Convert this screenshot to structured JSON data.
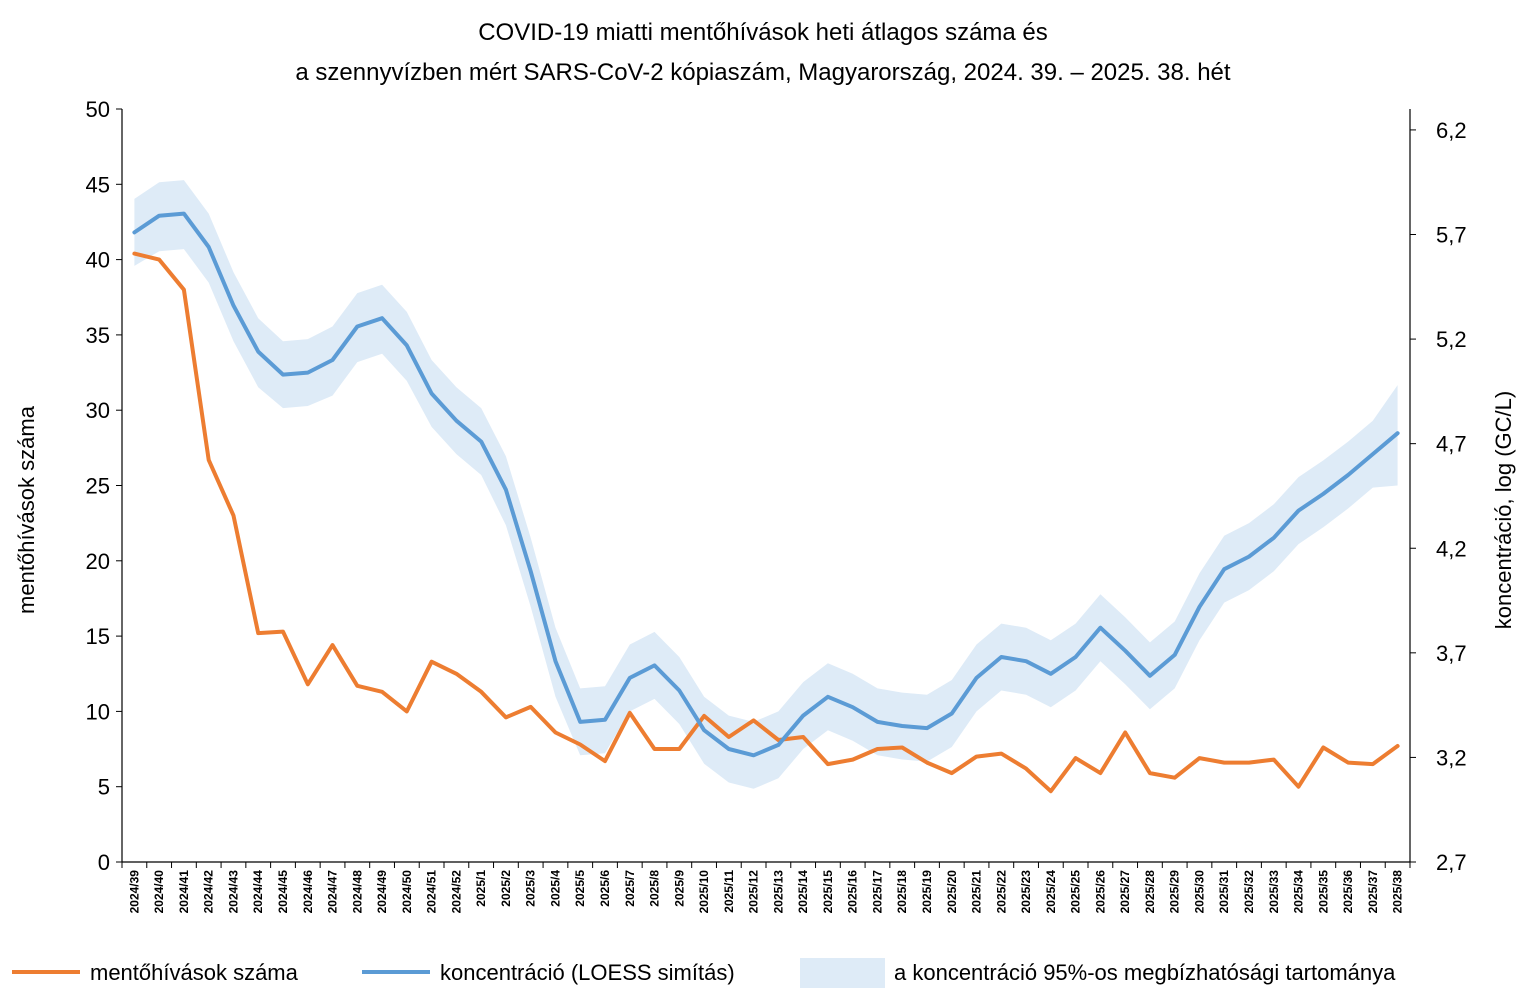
{
  "chart_data": {
    "type": "line",
    "title_lines": [
      "COVID-19 miatti mentőhívások heti átlagos száma és",
      "a szennyvízben mért SARS-CoV-2 kópiaszám, Magyarország, 2024. 39. – 2025. 38. hét"
    ],
    "ylabel": "mentőhívások száma",
    "ylabel_right": "koncentráció,  log (GC/L)",
    "ylim": [
      0,
      50
    ],
    "yticks": [
      0,
      5,
      10,
      15,
      20,
      25,
      30,
      35,
      40,
      45,
      50
    ],
    "ylim_right": [
      2.7,
      6.3
    ],
    "yticks_right": [
      2.7,
      3.2,
      3.7,
      4.2,
      4.7,
      5.2,
      5.7,
      6.2
    ],
    "ytick_labels_right": [
      "2,7",
      "3,2",
      "3,7",
      "4,2",
      "4,7",
      "5,2",
      "5,7",
      "6,2"
    ],
    "categories": [
      "2024/39",
      "2024/40",
      "2024/41",
      "2024/42",
      "2024/43",
      "2024/44",
      "2024/45",
      "2024/46",
      "2024/47",
      "2024/48",
      "2024/49",
      "2024/50",
      "2024/51",
      "2024/52",
      "2025/1",
      "2025/2",
      "2025/3",
      "2025/4",
      "2025/5",
      "2025/6",
      "2025/7",
      "2025/8",
      "2025/9",
      "2025/10",
      "2025/11",
      "2025/12",
      "2025/13",
      "2025/14",
      "2025/15",
      "2025/16",
      "2025/17",
      "2025/18",
      "2025/19",
      "2025/20",
      "2025/21",
      "2025/22",
      "2025/23",
      "2025/24",
      "2025/25",
      "2025/26",
      "2025/27",
      "2025/28",
      "2025/29",
      "2025/30",
      "2025/31",
      "2025/32",
      "2025/33",
      "2025/34",
      "2025/35",
      "2025/36",
      "2025/37",
      "2025/38"
    ],
    "series": [
      {
        "name": "mentőhívások száma",
        "axis": "left",
        "color": "#ED7D31",
        "values": [
          40.4,
          40.0,
          38.0,
          26.7,
          23.0,
          15.2,
          15.3,
          11.8,
          14.4,
          11.7,
          11.3,
          10.0,
          13.3,
          12.5,
          11.3,
          9.6,
          10.3,
          8.6,
          7.8,
          6.7,
          9.9,
          7.5,
          7.5,
          9.7,
          8.3,
          9.4,
          8.1,
          8.3,
          6.5,
          6.8,
          7.5,
          7.6,
          6.6,
          5.9,
          7.0,
          7.2,
          6.2,
          4.7,
          6.9,
          5.9,
          8.6,
          5.9,
          5.6,
          6.9,
          6.6,
          6.6,
          6.8,
          5.0,
          7.6,
          6.6,
          6.5,
          7.7
        ]
      },
      {
        "name": "koncentráció (LOESS simítás)",
        "axis": "right",
        "color": "#5B9BD5",
        "values": [
          5.71,
          5.79,
          5.8,
          5.64,
          5.36,
          5.14,
          5.03,
          5.04,
          5.1,
          5.26,
          5.3,
          5.17,
          4.94,
          4.81,
          4.71,
          4.48,
          4.09,
          3.66,
          3.37,
          3.38,
          3.58,
          3.64,
          3.52,
          3.33,
          3.24,
          3.21,
          3.26,
          3.4,
          3.49,
          3.44,
          3.37,
          3.35,
          3.34,
          3.41,
          3.58,
          3.68,
          3.66,
          3.6,
          3.68,
          3.82,
          3.71,
          3.59,
          3.69,
          3.92,
          4.1,
          4.16,
          4.25,
          4.38,
          4.46,
          4.55,
          4.65,
          4.75
        ]
      }
    ],
    "band": {
      "name": "a koncentráció 95%-os megbízhatósági tartománya",
      "color": "#DEEBF7",
      "lower": [
        5.55,
        5.62,
        5.63,
        5.47,
        5.19,
        4.97,
        4.87,
        4.88,
        4.93,
        5.09,
        5.13,
        5.0,
        4.78,
        4.65,
        4.55,
        4.31,
        3.92,
        3.49,
        3.21,
        3.22,
        3.42,
        3.48,
        3.36,
        3.17,
        3.08,
        3.05,
        3.1,
        3.24,
        3.33,
        3.28,
        3.21,
        3.19,
        3.18,
        3.25,
        3.42,
        3.52,
        3.5,
        3.44,
        3.52,
        3.66,
        3.55,
        3.43,
        3.53,
        3.76,
        3.94,
        4.0,
        4.09,
        4.22,
        4.3,
        4.39,
        4.49,
        4.5
      ],
      "upper": [
        5.87,
        5.95,
        5.96,
        5.8,
        5.52,
        5.3,
        5.19,
        5.2,
        5.26,
        5.42,
        5.46,
        5.33,
        5.1,
        4.97,
        4.87,
        4.64,
        4.25,
        3.82,
        3.53,
        3.54,
        3.74,
        3.8,
        3.68,
        3.49,
        3.4,
        3.37,
        3.42,
        3.56,
        3.65,
        3.6,
        3.53,
        3.51,
        3.5,
        3.57,
        3.74,
        3.84,
        3.82,
        3.76,
        3.84,
        3.98,
        3.87,
        3.75,
        3.85,
        4.08,
        4.26,
        4.32,
        4.41,
        4.54,
        4.62,
        4.71,
        4.81,
        4.98
      ]
    },
    "legend_position": "bottom"
  }
}
